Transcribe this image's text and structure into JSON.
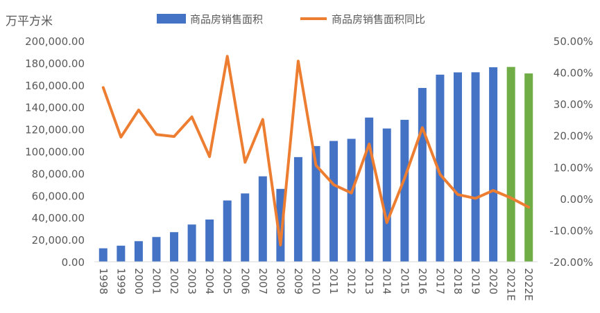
{
  "chart_data": {
    "type": "bar",
    "unit_label": "万平方米",
    "categories": [
      "1998",
      "1999",
      "2000",
      "2001",
      "2002",
      "2003",
      "2004",
      "2005",
      "2006",
      "2007",
      "2008",
      "2009",
      "2010",
      "2011",
      "2012",
      "2013",
      "2014",
      "2015",
      "2016",
      "2017",
      "2018",
      "2019",
      "2020",
      "2021E",
      "2022E"
    ],
    "series": [
      {
        "name": "商品房销售面积",
        "type": "bar",
        "axis": "left",
        "color": "#4472C4",
        "estimate_color": "#70AD47",
        "values": [
          12185,
          14557,
          18637,
          22412,
          26808,
          33718,
          38232,
          55486,
          61857,
          77355,
          65970,
          94755,
          104765,
          109367,
          111304,
          130551,
          120649,
          128495,
          157349,
          169408,
          171465,
          171558,
          176086,
          176400,
          170500
        ]
      },
      {
        "name": "商品房销售面积同比",
        "type": "line",
        "axis": "right",
        "color": "#ED7D31",
        "values": [
          35.2,
          19.5,
          28.1,
          20.3,
          19.7,
          25.9,
          13.3,
          45.1,
          11.5,
          25.1,
          -14.7,
          43.6,
          10.6,
          4.4,
          1.8,
          17.3,
          -7.6,
          6.5,
          22.5,
          7.7,
          1.3,
          0.1,
          2.6,
          0.2,
          -2.7
        ]
      }
    ],
    "y_left": {
      "min": 0,
      "max": 200000,
      "step": 20000,
      "tick_labels": [
        "0.00",
        "20,000.00",
        "40,000.00",
        "60,000.00",
        "80,000.00",
        "100,000.00",
        "120,000.00",
        "140,000.00",
        "160,000.00",
        "180,000.00",
        "200,000.00"
      ]
    },
    "y_right": {
      "min": -20,
      "max": 50,
      "step": 10,
      "tick_labels": [
        "-20.00%",
        "-10.00%",
        "0.00%",
        "10.00%",
        "20.00%",
        "30.00%",
        "40.00%",
        "50.00%"
      ]
    },
    "legend_position": "top-center",
    "grid": false
  }
}
